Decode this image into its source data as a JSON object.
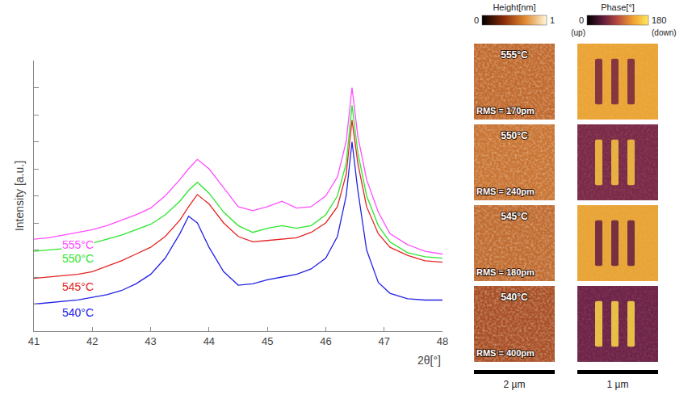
{
  "chart_data": {
    "type": "line",
    "x_label": "2θ[°]",
    "y_label": "Intensity [a.u.]",
    "xlim": [
      41,
      48
    ],
    "xticks": [
      41,
      42,
      43,
      44,
      45,
      46,
      47,
      48
    ],
    "ylim": [
      0,
      10
    ],
    "yticks": [
      1,
      2,
      3,
      4,
      5,
      6,
      7,
      8,
      9
    ],
    "tick_labels": "x",
    "grid": false,
    "x": [
      41,
      41.25,
      41.5,
      41.75,
      42,
      42.25,
      42.5,
      42.75,
      43,
      43.25,
      43.5,
      43.65,
      43.8,
      44,
      44.25,
      44.5,
      44.75,
      45,
      45.25,
      45.5,
      45.75,
      46,
      46.2,
      46.35,
      46.45,
      46.55,
      46.7,
      46.9,
      47.1,
      47.4,
      47.7,
      48
    ],
    "series": [
      {
        "name": "540°C",
        "color": "#2323e6",
        "values": [
          1.0,
          1.05,
          1.1,
          1.15,
          1.25,
          1.35,
          1.5,
          1.75,
          2.1,
          2.7,
          3.6,
          4.25,
          4.0,
          3.1,
          2.2,
          1.7,
          1.75,
          1.9,
          2.0,
          2.1,
          2.3,
          2.7,
          3.5,
          5.0,
          7.0,
          5.2,
          3.0,
          1.8,
          1.4,
          1.2,
          1.15,
          1.15
        ]
      },
      {
        "name": "545°C",
        "color": "#e62323",
        "values": [
          1.95,
          2.0,
          2.05,
          2.1,
          2.2,
          2.4,
          2.6,
          2.85,
          3.1,
          3.5,
          4.1,
          4.6,
          5.05,
          4.7,
          4.0,
          3.5,
          3.3,
          3.35,
          3.4,
          3.45,
          3.65,
          4.0,
          4.6,
          5.8,
          7.8,
          6.2,
          4.6,
          3.6,
          3.1,
          2.8,
          2.6,
          2.55
        ]
      },
      {
        "name": "550°C",
        "color": "#2ee62e",
        "values": [
          2.95,
          3.0,
          3.05,
          3.15,
          3.25,
          3.4,
          3.55,
          3.75,
          3.95,
          4.3,
          4.8,
          5.2,
          5.5,
          5.1,
          4.4,
          3.9,
          3.65,
          3.8,
          3.9,
          3.8,
          3.9,
          4.3,
          5.0,
          6.2,
          8.35,
          6.6,
          5.0,
          3.9,
          3.3,
          2.9,
          2.75,
          2.7
        ]
      },
      {
        "name": "555°C",
        "color": "#ff4dff",
        "values": [
          3.4,
          3.45,
          3.55,
          3.65,
          3.75,
          3.9,
          4.1,
          4.3,
          4.55,
          5.0,
          5.6,
          6.0,
          6.35,
          6.0,
          5.3,
          4.6,
          4.45,
          4.6,
          4.8,
          4.55,
          4.6,
          5.0,
          5.7,
          7.0,
          9.0,
          7.2,
          5.6,
          4.4,
          3.6,
          3.2,
          2.95,
          2.85
        ]
      }
    ]
  },
  "afm": {
    "height_scale": {
      "title": "Height[nm]",
      "min": 0,
      "max": 1,
      "colors": [
        "#000000",
        "#8a2a08",
        "#e08a30",
        "#fff6dc"
      ]
    },
    "phase_scale": {
      "title": "Phase[°]",
      "min": 0,
      "max": 180,
      "min_label": "(up)",
      "max_label": "(down)",
      "colors": [
        "#000000",
        "#5a1a3a",
        "#b84a40",
        "#f0a030",
        "#ffe860"
      ]
    },
    "rows": [
      {
        "temperature": "555°C",
        "rms": "RMS = 170pm",
        "height_color": "#c06a30",
        "phase_colors": [
          "#eaa436",
          "#7a2a40"
        ]
      },
      {
        "temperature": "550°C",
        "rms": "RMS = 240pm",
        "height_color": "#c87434",
        "phase_colors": [
          "#7a2a48",
          "#f2c040"
        ]
      },
      {
        "temperature": "545°C",
        "rms": "RMS = 180pm",
        "height_color": "#c06c32",
        "phase_colors": [
          "#e8a436",
          "#6a2440"
        ]
      },
      {
        "temperature": "540°C",
        "rms": "RMS = 400pm",
        "height_color": "#a85028",
        "phase_colors": [
          "#6e2448",
          "#f4d048"
        ]
      }
    ],
    "scale_bars": [
      "2 µm",
      "1 µm"
    ]
  }
}
